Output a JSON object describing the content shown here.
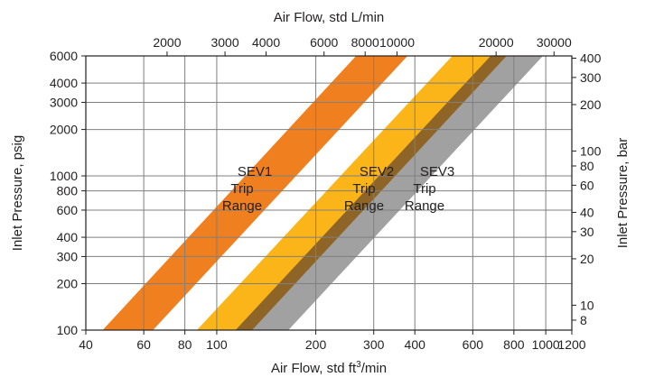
{
  "chart_data": {
    "type": "area",
    "title": "",
    "x_bottom": {
      "label_prefix": "Air Flow, std ft",
      "label_sup": "3",
      "label_suffix": "/min",
      "scale": "log",
      "range": [
        40,
        1200
      ],
      "ticks": [
        40,
        60,
        80,
        100,
        200,
        300,
        400,
        600,
        800,
        1000,
        1200
      ]
    },
    "x_top": {
      "label": "Air Flow, std L/min",
      "scale": "log",
      "ticks": [
        2000,
        3000,
        4000,
        6000,
        8000,
        10000,
        20000,
        30000
      ]
    },
    "y_left": {
      "label": "Inlet Pressure, psig",
      "scale": "log",
      "range": [
        100,
        6000
      ],
      "ticks": [
        100,
        200,
        300,
        400,
        600,
        800,
        1000,
        2000,
        3000,
        4000,
        6000
      ]
    },
    "y_right": {
      "label": "Inlet Pressure, bar",
      "scale": "log",
      "ticks": [
        8,
        10,
        20,
        30,
        40,
        60,
        80,
        100,
        200,
        300,
        400
      ]
    },
    "grid": true,
    "series": [
      {
        "name": "SEV1 Trip Range",
        "label_lines": [
          "SEV1",
          "Trip",
          "Range"
        ],
        "color": "#f07f1f",
        "lower_edge": [
          [
            45,
            100
          ],
          [
            265,
            6000
          ]
        ],
        "upper_edge": [
          [
            64,
            100
          ],
          [
            380,
            6000
          ]
        ]
      },
      {
        "name": "SEV2 Trip Range",
        "label_lines": [
          "SEV2",
          "Trip",
          "Range"
        ],
        "color": "#fbb519",
        "lower_edge": [
          [
            87,
            100
          ],
          [
            520,
            6000
          ]
        ],
        "upper_edge": [
          [
            128,
            100
          ],
          [
            760,
            6000
          ]
        ]
      },
      {
        "name": "SEV3 Trip Range",
        "label_lines": [
          "SEV3",
          "Trip",
          "Range"
        ],
        "color": "#a1a1a1",
        "lower_edge": [
          [
            114,
            100
          ],
          [
            680,
            6000
          ]
        ],
        "upper_edge": [
          [
            165,
            100
          ],
          [
            980,
            6000
          ]
        ]
      }
    ],
    "overlap_color": "#8b5a10"
  }
}
